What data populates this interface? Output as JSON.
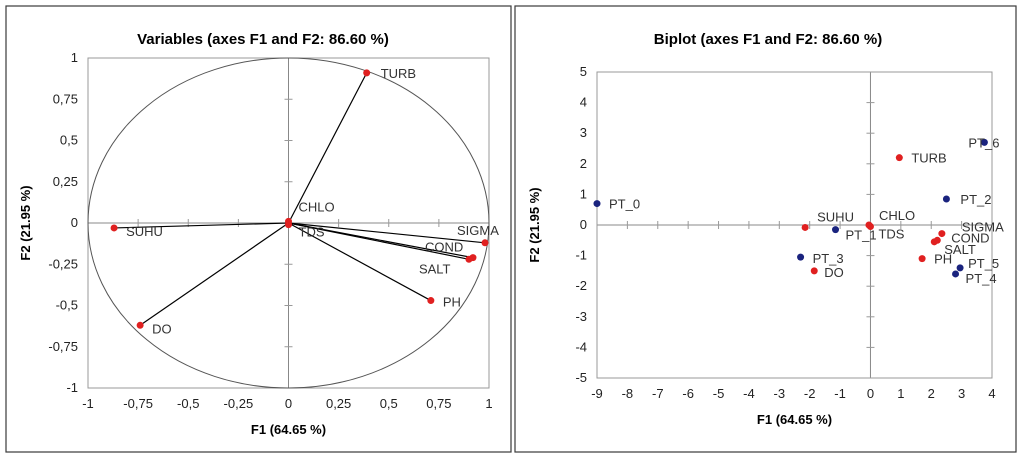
{
  "chart_data": [
    {
      "type": "scatter",
      "subtype": "correlation-circle",
      "title": "Variables (axes F1 and F2: 86.60 %)",
      "xlabel": "F1 (64.65 %)",
      "ylabel": "F2 (21.95 %)",
      "xlim": [
        -1,
        1
      ],
      "ylim": [
        -1,
        1
      ],
      "xticks": [
        "-1",
        "-0,75",
        "-0,5",
        "-0,25",
        "0",
        "0,25",
        "0,5",
        "0,75",
        "1"
      ],
      "yticks": [
        "-1",
        "-0,75",
        "-0,5",
        "-0,25",
        "0",
        "0,25",
        "0,5",
        "0,75",
        "1"
      ],
      "point_color": "#e02020",
      "points": [
        {
          "label": "TURB",
          "x": 0.39,
          "y": 0.91
        },
        {
          "label": "CHLO",
          "x": 0.0,
          "y": 0.01
        },
        {
          "label": "TDS",
          "x": 0.0,
          "y": -0.01
        },
        {
          "label": "SUHU",
          "x": -0.87,
          "y": -0.03
        },
        {
          "label": "SIGMA",
          "x": 0.98,
          "y": -0.12
        },
        {
          "label": "COND",
          "x": 0.92,
          "y": -0.21
        },
        {
          "label": "SALT",
          "x": 0.9,
          "y": -0.22
        },
        {
          "label": "PH",
          "x": 0.71,
          "y": -0.47
        },
        {
          "label": "DO",
          "x": -0.74,
          "y": -0.62
        }
      ]
    },
    {
      "type": "scatter",
      "subtype": "biplot",
      "title": "Biplot (axes F1 and F2: 86.60 %)",
      "xlabel": "F1 (64.65 %)",
      "ylabel": "F2 (21.95 %)",
      "xlim": [
        -9,
        4
      ],
      "ylim": [
        -5,
        5
      ],
      "xticks": [
        "-9",
        "-8",
        "-7",
        "-6",
        "-5",
        "-4",
        "-3",
        "-2",
        "-1",
        "0",
        "1",
        "2",
        "3",
        "4"
      ],
      "yticks": [
        "-5",
        "-4",
        "-3",
        "-2",
        "-1",
        "0",
        "1",
        "2",
        "3",
        "4",
        "5"
      ],
      "series": [
        {
          "color": "#e02020",
          "points": [
            {
              "label": "TURB",
              "x": 0.95,
              "y": 2.2
            },
            {
              "label": "CHLO",
              "x": -0.05,
              "y": 0.0
            },
            {
              "label": "TDS",
              "x": 0.0,
              "y": -0.05
            },
            {
              "label": "SUHU",
              "x": -2.15,
              "y": -0.08
            },
            {
              "label": "SIGMA",
              "x": 2.35,
              "y": -0.28
            },
            {
              "label": "COND",
              "x": 2.2,
              "y": -0.5
            },
            {
              "label": "SALT",
              "x": 2.1,
              "y": -0.55
            },
            {
              "label": "PH",
              "x": 1.7,
              "y": -1.1
            },
            {
              "label": "DO",
              "x": -1.85,
              "y": -1.5
            }
          ]
        },
        {
          "color": "#1a237e",
          "points": [
            {
              "label": "PT_0",
              "x": -9.0,
              "y": 0.7
            },
            {
              "label": "PT_1",
              "x": -1.15,
              "y": -0.15
            },
            {
              "label": "PT_2",
              "x": 2.5,
              "y": 0.85
            },
            {
              "label": "PT_3",
              "x": -2.3,
              "y": -1.05
            },
            {
              "label": "PT_4",
              "x": 2.8,
              "y": -1.6
            },
            {
              "label": "PT_5",
              "x": 2.95,
              "y": -1.4
            },
            {
              "label": "PT_6",
              "x": 3.75,
              "y": 2.7
            }
          ]
        }
      ]
    }
  ]
}
